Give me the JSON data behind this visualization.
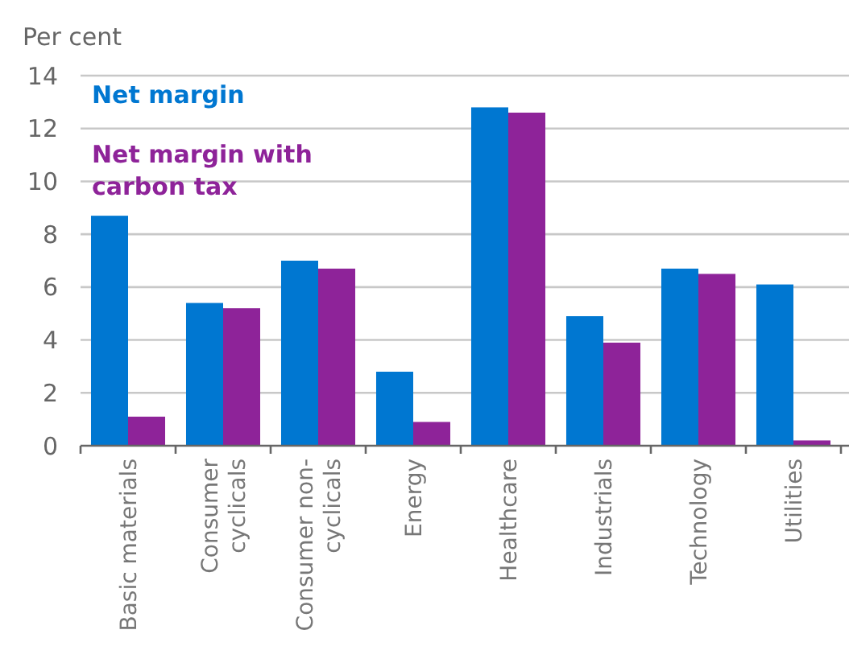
{
  "chart_data": {
    "type": "bar",
    "ylabel": "Per cent",
    "categories": [
      "Basic materials",
      "Consumer\ncyclicals",
      "Consumer non-\ncyclicals",
      "Energy",
      "Healthcare",
      "Industrials",
      "Technology",
      "Utilities"
    ],
    "series": [
      {
        "name": "Net margin",
        "color": "#0077d1",
        "values": [
          8.7,
          5.4,
          7.0,
          2.8,
          12.8,
          4.9,
          6.7,
          6.1
        ]
      },
      {
        "name": "Net margin with carbon tax",
        "color": "#8e2399",
        "values": [
          1.1,
          5.2,
          6.7,
          0.9,
          12.6,
          3.9,
          6.5,
          0.2
        ]
      }
    ],
    "ylim": [
      0,
      14
    ],
    "yticks": [
      0,
      2,
      4,
      6,
      8,
      10,
      12,
      14
    ],
    "grid": "y",
    "legend": "top left"
  }
}
